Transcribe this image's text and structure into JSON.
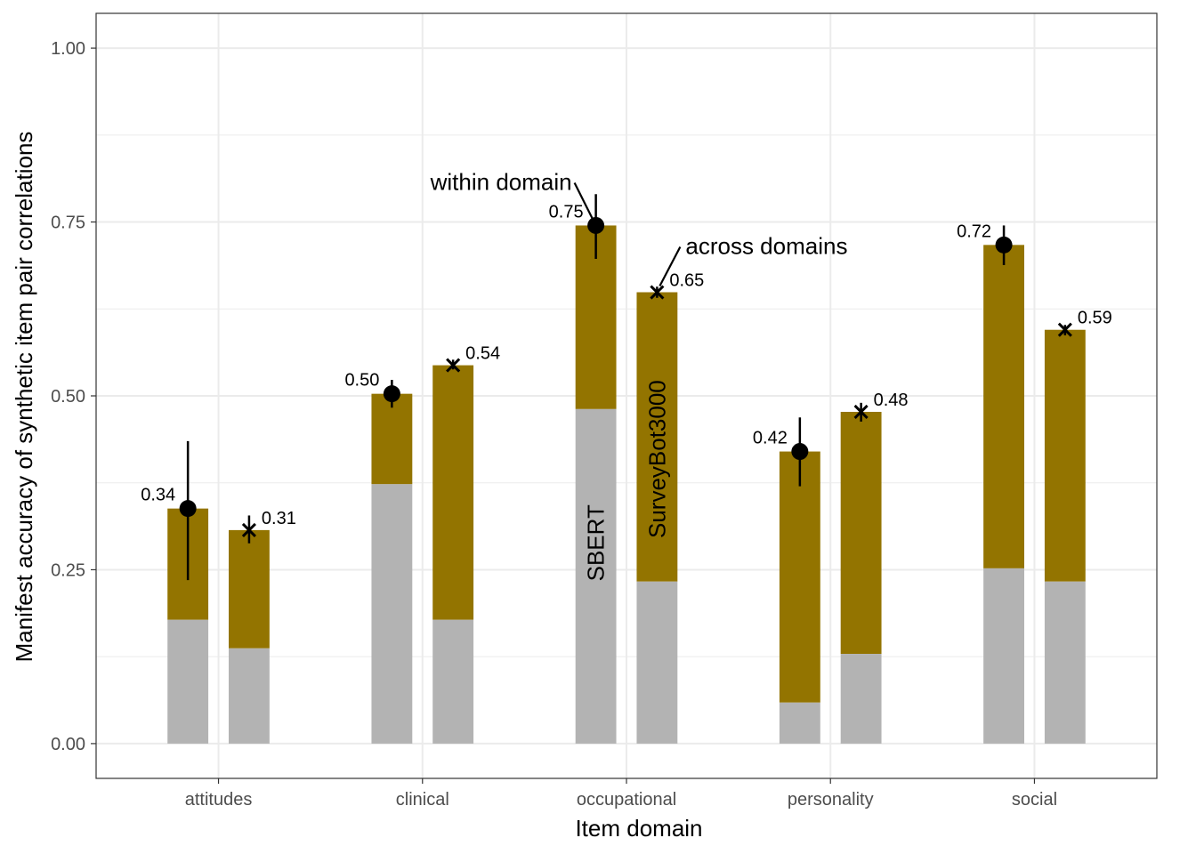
{
  "chart_data": {
    "type": "bar",
    "xlabel": "Item domain",
    "ylabel": "Manifest accuracy of synthetic item pair correlations",
    "ylim": [
      -0.05,
      1.05
    ],
    "yticks": [
      "0.00",
      "0.25",
      "0.50",
      "0.75",
      "1.00"
    ],
    "grid": true,
    "categories": [
      "attitudes",
      "clinical",
      "occupational",
      "personality",
      "social"
    ],
    "colors": {
      "sbert": "#b3b3b3",
      "surveybot": "#937400",
      "point": "#000000",
      "grid": "#ebebeb",
      "frame": "#333333"
    },
    "bars": [
      {
        "category": "attitudes",
        "type": "within domain",
        "sbert": 0.178,
        "surveybot": 0.338,
        "label": "0.34",
        "marker": "circle",
        "ci": [
          0.235,
          0.435
        ]
      },
      {
        "category": "attitudes",
        "type": "across domains",
        "sbert": 0.137,
        "surveybot": 0.307,
        "label": "0.31",
        "marker": "x",
        "ci": [
          0.288,
          0.328
        ]
      },
      {
        "category": "clinical",
        "type": "within domain",
        "sbert": 0.373,
        "surveybot": 0.503,
        "label": "0.50",
        "marker": "circle",
        "ci": [
          0.483,
          0.523
        ]
      },
      {
        "category": "clinical",
        "type": "across domains",
        "sbert": 0.178,
        "surveybot": 0.544,
        "label": "0.54",
        "marker": "x",
        "ci": [
          0.538,
          0.552
        ]
      },
      {
        "category": "occupational",
        "type": "within domain",
        "sbert": 0.481,
        "surveybot": 0.745,
        "label": "0.75",
        "marker": "circle",
        "ci": [
          0.697,
          0.79
        ]
      },
      {
        "category": "occupational",
        "type": "across domains",
        "sbert": 0.233,
        "surveybot": 0.649,
        "label": "0.65",
        "marker": "x",
        "ci": [
          0.641,
          0.657
        ]
      },
      {
        "category": "personality",
        "type": "within domain",
        "sbert": 0.059,
        "surveybot": 0.42,
        "label": "0.42",
        "marker": "circle",
        "ci": [
          0.37,
          0.469
        ]
      },
      {
        "category": "personality",
        "type": "across domains",
        "sbert": 0.129,
        "surveybot": 0.477,
        "label": "0.48",
        "marker": "x",
        "ci": [
          0.463,
          0.49
        ]
      },
      {
        "category": "social",
        "type": "within domain",
        "sbert": 0.252,
        "surveybot": 0.717,
        "label": "0.72",
        "marker": "circle",
        "ci": [
          0.688,
          0.745
        ]
      },
      {
        "category": "social",
        "type": "across domains",
        "sbert": 0.233,
        "surveybot": 0.595,
        "label": "0.59",
        "marker": "x",
        "ci": [
          0.587,
          0.602
        ]
      }
    ],
    "annotations": {
      "within": "within domain",
      "across": "across domains",
      "sbert": "SBERT",
      "surveybot": "SurveyBot3000"
    }
  }
}
